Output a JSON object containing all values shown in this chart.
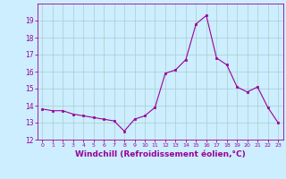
{
  "x": [
    0,
    1,
    2,
    3,
    4,
    5,
    6,
    7,
    8,
    9,
    10,
    11,
    12,
    13,
    14,
    15,
    16,
    17,
    18,
    19,
    20,
    21,
    22,
    23
  ],
  "y": [
    13.8,
    13.7,
    13.7,
    13.5,
    13.4,
    13.3,
    13.2,
    13.1,
    12.5,
    13.2,
    13.4,
    13.9,
    15.9,
    16.1,
    16.7,
    18.8,
    19.3,
    16.8,
    16.4,
    15.1,
    14.8,
    15.1,
    13.9,
    13.0
  ],
  "line_color": "#990099",
  "marker": "s",
  "marker_size": 2,
  "background_color": "#cceeff",
  "grid_color": "#aacccc",
  "xlabel": "Windchill (Refroidissement éolien,°C)",
  "xlabel_fontsize": 6.5,
  "tick_color": "#990099",
  "label_color": "#990099",
  "ylim": [
    12,
    20
  ],
  "xlim": [
    -0.5,
    23.5
  ],
  "yticks": [
    12,
    13,
    14,
    15,
    16,
    17,
    18,
    19
  ],
  "xticks": [
    0,
    1,
    2,
    3,
    4,
    5,
    6,
    7,
    8,
    9,
    10,
    11,
    12,
    13,
    14,
    15,
    16,
    17,
    18,
    19,
    20,
    21,
    22,
    23
  ]
}
